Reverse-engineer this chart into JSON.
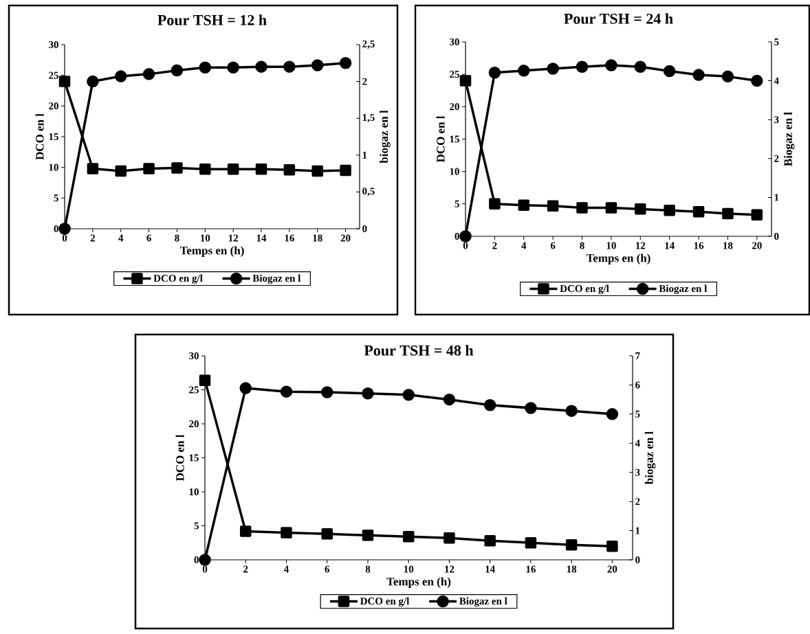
{
  "chart_data": [
    {
      "type": "line",
      "title": "Pour TSH = 12 h",
      "xlabel": "Temps en (h)",
      "ylabel": "DCO en l",
      "y2label": "biogaz en l",
      "legend": "bottom",
      "x": [
        0,
        2,
        4,
        6,
        8,
        10,
        12,
        14,
        16,
        18,
        20
      ],
      "xlim": [
        0,
        21
      ],
      "xticks": [
        0,
        2,
        4,
        6,
        8,
        10,
        12,
        14,
        16,
        18,
        20
      ],
      "ylim": [
        0,
        30
      ],
      "yticks": [
        0,
        5,
        10,
        15,
        20,
        25,
        30
      ],
      "y2lim": [
        0,
        2.5
      ],
      "y2ticks": [
        0,
        {
          "value": 0.5,
          "label": "0,5"
        },
        1,
        {
          "value": 1.5,
          "label": "1,5"
        },
        2,
        {
          "value": 2.5,
          "label": "2,5"
        }
      ],
      "series": [
        {
          "name": "DCO en g/l",
          "color": "#000000",
          "marker": "square",
          "values": [
            24,
            9.8,
            9.4,
            9.8,
            9.9,
            9.7,
            9.7,
            9.7,
            9.6,
            9.4,
            9.5
          ]
        },
        {
          "name": "Biogaz en l",
          "color": "#000000",
          "marker": "circle",
          "axis": "y2",
          "values": [
            0,
            2.0,
            2.07,
            2.1,
            2.15,
            2.19,
            2.19,
            2.2,
            2.2,
            2.22,
            2.25
          ]
        }
      ]
    },
    {
      "type": "line",
      "title": "Pour TSH = 24 h",
      "xlabel": "Temps en (h)",
      "ylabel": "DCO en l",
      "y2label": "Biogaz en l",
      "legend": "bottom",
      "x": [
        0,
        2,
        4,
        6,
        8,
        10,
        12,
        14,
        16,
        18,
        20
      ],
      "xlim": [
        0,
        21
      ],
      "xticks": [
        0,
        2,
        4,
        6,
        8,
        10,
        12,
        14,
        16,
        18,
        20
      ],
      "ylim": [
        0,
        30
      ],
      "yticks": [
        0,
        5,
        10,
        15,
        20,
        25,
        30
      ],
      "y2lim": [
        0,
        5
      ],
      "y2ticks": [
        0,
        1,
        2,
        3,
        4,
        5
      ],
      "series": [
        {
          "name": "DCO en g/l",
          "color": "#000000",
          "marker": "square",
          "values": [
            24,
            5.0,
            4.8,
            4.7,
            4.4,
            4.4,
            4.2,
            4.0,
            3.8,
            3.5,
            3.3
          ]
        },
        {
          "name": "Biogaz en l",
          "color": "#000000",
          "marker": "circle",
          "axis": "y2",
          "values": [
            0,
            4.21,
            4.26,
            4.31,
            4.36,
            4.4,
            4.36,
            4.25,
            4.15,
            4.11,
            4.0
          ]
        }
      ]
    },
    {
      "type": "line",
      "title": "Pour TSH = 48 h",
      "xlabel": "Temps en (h)",
      "ylabel": "DCO en l",
      "y2label": "biogaz en l",
      "legend": "bottom",
      "x": [
        0,
        2,
        4,
        6,
        8,
        10,
        12,
        14,
        16,
        18,
        20
      ],
      "xlim": [
        0,
        21
      ],
      "xticks": [
        0,
        2,
        4,
        6,
        8,
        10,
        12,
        14,
        16,
        18,
        20
      ],
      "ylim": [
        0,
        30
      ],
      "yticks": [
        0,
        5,
        10,
        15,
        20,
        25,
        30
      ],
      "y2lim": [
        0,
        7
      ],
      "y2ticks": [
        0,
        1,
        2,
        3,
        4,
        5,
        6,
        7
      ],
      "series": [
        {
          "name": "DCO en g/l",
          "color": "#000000",
          "marker": "square",
          "values": [
            26.4,
            4.2,
            4.0,
            3.8,
            3.6,
            3.4,
            3.2,
            2.8,
            2.5,
            2.2,
            2.0
          ]
        },
        {
          "name": "Biogaz en l",
          "color": "#000000",
          "marker": "circle",
          "axis": "y2",
          "values": [
            0,
            5.89,
            5.77,
            5.75,
            5.71,
            5.66,
            5.5,
            5.31,
            5.21,
            5.11,
            5.0
          ]
        }
      ]
    }
  ]
}
